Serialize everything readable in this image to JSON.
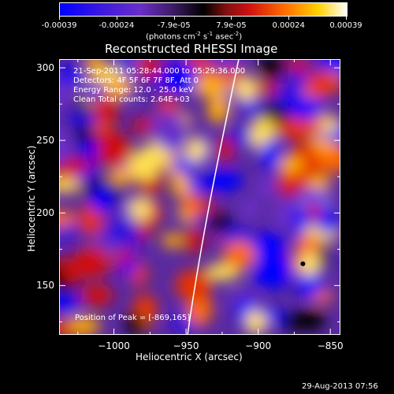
{
  "colorbar": {
    "ticks": [
      "-0.00039",
      "-0.00024",
      "-7.9e-05",
      "7.9e-05",
      "0.00024",
      "0.00039"
    ],
    "unit_label": "(photons cm",
    "unit_exp1": "-2",
    "unit_mid": " s",
    "unit_exp2": "-1",
    "unit_end": " asec",
    "unit_exp3": "-2",
    "unit_close": ")",
    "range": [
      -0.00039,
      0.00039
    ]
  },
  "chart_data": {
    "type": "heatmap",
    "title": "Reconstructed RHESSI Image",
    "xlabel": "Heliocentric X (arcsec)",
    "ylabel": "Heliocentric Y (arcsec)",
    "xlim": [
      -1038,
      -843
    ],
    "ylim": [
      116,
      306
    ],
    "xticks": [
      -1000,
      -950,
      -900,
      -850
    ],
    "xtick_labels": [
      "−1000",
      "−950",
      "−900",
      "−850"
    ],
    "yticks": [
      150,
      200,
      250,
      300
    ],
    "ytick_labels": [
      "150",
      "200",
      "250",
      "300"
    ],
    "colorscale": [
      "#0000ff",
      "#6a2ec8",
      "#000000",
      "#d01010",
      "#ff6a00",
      "#ffd000",
      "#ffffff"
    ],
    "peak": [
      -869,
      165
    ],
    "info_lines": [
      "21-Sep-2011 05:28:44.000 to 05:29:36.000",
      "Detectors: 4F 5F 6F 7F 8F, Att 0",
      "Energy Range: 12.0 - 25.0 keV",
      "Clean     Total counts: 2.64E+03"
    ],
    "peak_label": "Position of Peak = [-869,165]"
  },
  "timestamp": "29-Aug-2013 07:56"
}
